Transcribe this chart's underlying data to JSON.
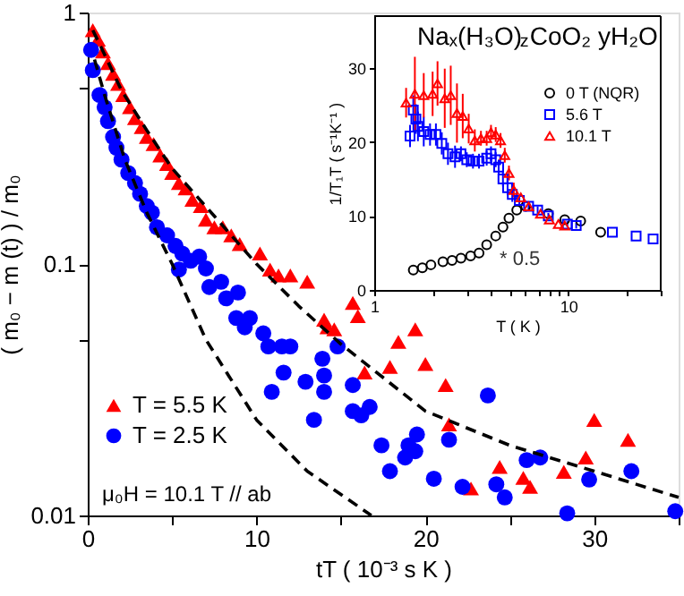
{
  "chart_data": [
    {
      "type": "scatter",
      "xlabel": "tT ( 10⁻³ s K )",
      "ylabel": "( m₀ − m (t) ) / m₀",
      "log": "y",
      "xlim": [
        0,
        35
      ],
      "ylim": [
        0.01,
        1
      ],
      "xticks": [
        0,
        {
          "value": 5,
          "label": null
        },
        10,
        {
          "value": 15,
          "label": null
        },
        20,
        {
          "value": 25,
          "label": null
        },
        30,
        {
          "value": 35,
          "label": null
        }
      ],
      "yticks": [
        0.01,
        {
          "value": 0.05,
          "label": null
        },
        0.1,
        {
          "value": 0.5,
          "label": null
        },
        1
      ],
      "legend": "bottom left",
      "annotations": [
        "μ₀H = 10.1 T  // ab"
      ],
      "series": [
        {
          "name": "T = 5.5 K",
          "color": "#ff0000",
          "marker": "triangle",
          "x": [
            0.3,
            0.6,
            0.9,
            1.2,
            1.5,
            1.8,
            2.1,
            2.5,
            2.8,
            3.2,
            3.5,
            3.9,
            4.3,
            4.7,
            5.0,
            5.4,
            5.8,
            6.2,
            6.7,
            7.0,
            7.5,
            8.0,
            8.5,
            9.0,
            10.2,
            10.8,
            11.3,
            12.0,
            13.0,
            14.0,
            14.2,
            14.6,
            15.7,
            16.0,
            16.4,
            17.9,
            18.4,
            19.4,
            20.0,
            21.2,
            21.4,
            22.7,
            24.4,
            25.8,
            26.2,
            28.2,
            29.5,
            30.0,
            32.0
          ],
          "values": [
            0.85,
            0.78,
            0.7,
            0.63,
            0.57,
            0.52,
            0.47,
            0.42,
            0.38,
            0.35,
            0.32,
            0.3,
            0.27,
            0.25,
            0.23,
            0.21,
            0.2,
            0.18,
            0.17,
            0.15,
            0.14,
            0.14,
            0.13,
            0.12,
            0.11,
            0.095,
            0.09,
            0.09,
            0.085,
            0.06,
            0.056,
            0.055,
            0.07,
            0.062,
            0.037,
            0.039,
            0.049,
            0.055,
            0.04,
            0.033,
            0.023,
            0.0128,
            0.0156,
            0.0141,
            0.013,
            0.0149,
            0.017,
            0.024,
            0.02
          ]
        },
        {
          "name": "T = 2.5 K",
          "color": "#0000ff",
          "marker": "circle",
          "x": [
            0.2,
            0.3,
            0.7,
            1.0,
            1.2,
            1.5,
            1.7,
            2.0,
            2.4,
            2.8,
            3.1,
            3.5,
            3.8,
            4.1,
            4.7,
            5.2,
            5.4,
            5.6,
            6.1,
            6.6,
            7.0,
            7.2,
            7.9,
            8.2,
            8.8,
            8.9,
            9.3,
            9.6,
            10.4,
            10.7,
            10.9,
            11.5,
            11.6,
            12.0,
            12.9,
            13.4,
            13.9,
            14.0,
            14.0,
            14.8,
            15.7,
            15.7,
            16.2,
            16.7,
            17.4,
            17.9,
            18.8,
            19.0,
            19.4,
            19.5,
            20.5,
            21.4,
            22.2,
            23.7,
            24.2,
            24.7,
            26.0,
            26.8,
            28.4,
            29.7,
            32.2,
            34.8
          ],
          "values": [
            0.71,
            0.59,
            0.47,
            0.42,
            0.37,
            0.32,
            0.29,
            0.26,
            0.23,
            0.21,
            0.19,
            0.17,
            0.16,
            0.14,
            0.13,
            0.118,
            0.095,
            0.11,
            0.103,
            0.107,
            0.096,
            0.081,
            0.085,
            0.073,
            0.061,
            0.077,
            0.056,
            0.061,
            0.053,
            0.047,
            0.031,
            0.047,
            0.037,
            0.047,
            0.034,
            0.024,
            0.042,
            0.036,
            0.031,
            0.047,
            0.026,
            0.033,
            0.025,
            0.027,
            0.019,
            0.015,
            0.017,
            0.019,
            0.018,
            0.021,
            0.014,
            0.02,
            0.013,
            0.03,
            0.0133,
            0.0118,
            0.0166,
            0.017,
            0.0102,
            0.0139,
            0.015,
            0.0104
          ]
        },
        {
          "type": "line",
          "color": "#000000",
          "line_style": "dashed",
          "x": [
            0.3,
            1,
            2,
            3.5,
            5,
            7.5,
            10,
            12.5,
            15,
            20,
            25,
            30,
            35
          ],
          "values": [
            0.85,
            0.68,
            0.49,
            0.34,
            0.24,
            0.155,
            0.1,
            0.068,
            0.048,
            0.026,
            0.019,
            0.015,
            0.0118
          ]
        },
        {
          "type": "line",
          "color": "#000000",
          "line_style": "dashed",
          "x": [
            0.4,
            1,
            2.2,
            3.5,
            5,
            7,
            10,
            13,
            16.8
          ],
          "values": [
            0.65,
            0.47,
            0.26,
            0.16,
            0.1,
            0.05,
            0.024,
            0.015,
            0.01
          ]
        }
      ]
    },
    {
      "type": "scatter",
      "title": "Naₓ(H₃O)$_{z}$CoO₂ yH₂O",
      "xlabel": "T ( K )",
      "ylabel": "1/T₁T ( s⁻¹K⁻¹ )",
      "log": "x",
      "xlim": [
        1,
        30
      ],
      "ylim": [
        0,
        37
      ],
      "xticks": [
        1,
        {
          "value": 2,
          "label": null
        },
        {
          "value": 3,
          "label": null
        },
        {
          "value": 4,
          "label": null
        },
        {
          "value": 5,
          "label": null
        },
        {
          "value": 6,
          "label": null
        },
        {
          "value": 7,
          "label": null
        },
        {
          "value": 8,
          "label": null
        },
        {
          "value": 9,
          "label": null
        },
        10,
        {
          "value": 20,
          "label": null
        },
        {
          "value": 30,
          "label": null
        }
      ],
      "yticks": [
        0,
        10,
        20,
        30
      ],
      "legend": "top right",
      "annotations": [
        "* 0.5"
      ],
      "series": [
        {
          "name": "0 T (NQR)",
          "color": "#000000",
          "marker": "circle",
          "x": [
            1.59,
            1.77,
            1.96,
            2.26,
            2.52,
            2.8,
            3.14,
            3.47,
            3.8,
            4.23,
            4.61,
            4.95,
            5.43,
            6.04,
            7.9,
            9.6,
            11.6,
            14.7
          ],
          "values": [
            2.7,
            3.0,
            3.4,
            3.8,
            4.0,
            4.3,
            4.6,
            5.0,
            6.1,
            7.3,
            8.5,
            9.7,
            10.8,
            11.3,
            10.3,
            9.5,
            9.3,
            7.8
          ]
        },
        {
          "name": "5.6 T",
          "color": "#0000ff",
          "marker": "square",
          "x": [
            1.53,
            1.59,
            1.64,
            1.68,
            1.8,
            1.94,
            2.08,
            2.23,
            2.4,
            2.61,
            2.8,
            3.0,
            3.23,
            3.47,
            3.8,
            4.0,
            4.23,
            4.38,
            4.61,
            4.87,
            5.15,
            5.6,
            6.25,
            6.96,
            7.9,
            9.9,
            11.0,
            16.9,
            22.4,
            27.4
          ],
          "values": [
            20.8,
            24.3,
            23.1,
            22.1,
            21.4,
            21.0,
            21.0,
            19.8,
            18.4,
            18.0,
            18.4,
            17.6,
            17.4,
            17.4,
            17.8,
            18.4,
            17.6,
            16.6,
            15.0,
            13.8,
            12.9,
            12.1,
            11.3,
            10.8,
            10.0,
            8.9,
            8.7,
            7.8,
            7.3,
            6.9
          ],
          "errors": [
            1.5,
            2,
            2,
            2,
            2,
            1.5,
            1.5,
            1.5,
            1.5,
            1.5,
            1,
            1,
            1,
            1,
            1,
            1,
            1,
            1,
            1,
            1,
            1,
            0.7,
            0.5,
            0.5,
            0.4,
            0.4,
            0.4,
            null,
            null,
            null
          ]
        },
        {
          "name": "10.1 T",
          "color": "#ff0000",
          "marker": "triangle",
          "x": [
            1.46,
            1.62,
            1.8,
            2.0,
            2.12,
            2.31,
            2.48,
            2.67,
            2.86,
            3.07,
            3.3,
            3.55,
            3.8,
            4.0,
            4.23,
            4.48,
            4.71,
            4.95,
            5.24,
            5.7,
            6.25,
            7.2,
            8.0,
            8.9,
            9.6
          ],
          "values": [
            25.3,
            26.5,
            26.3,
            26.5,
            27.9,
            25.9,
            26.3,
            23.9,
            23.5,
            21.8,
            20.2,
            20.5,
            20.5,
            21.3,
            21.0,
            20.2,
            18.2,
            15.8,
            13.5,
            12.5,
            11.3,
            10.3,
            9.5,
            8.9,
            8.7
          ],
          "errors": [
            2,
            5,
            3,
            3,
            3,
            4,
            4,
            4,
            3,
            2,
            1.5,
            1,
            1,
            1,
            1,
            1,
            1,
            1,
            1,
            null,
            null,
            null,
            null,
            null,
            null
          ]
        }
      ]
    }
  ]
}
